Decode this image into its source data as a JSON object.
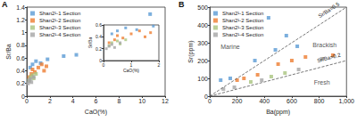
{
  "chart_data": [
    {
      "panel": "A",
      "type": "scatter",
      "marker": "square",
      "x_label": "CaO(%)",
      "y_label": "Sr/Ba",
      "xlim": [
        0,
        12
      ],
      "xticks": [
        0,
        2,
        4,
        6,
        8,
        10,
        12
      ],
      "ylim": [
        0,
        1.4
      ],
      "yticks": [
        0,
        0.2,
        0.4,
        0.6,
        0.8,
        1,
        1.2,
        1.4
      ],
      "legend": "upper left",
      "inset": {
        "x_label": "CaO(%)",
        "y_label": "Sr/Ba",
        "xlim": [
          0,
          2
        ],
        "xticks": [
          0,
          1,
          2
        ],
        "ylim": [
          0,
          0.6
        ],
        "yticks": [
          0,
          0.2,
          0.4,
          0.6
        ]
      },
      "series": [
        {
          "name": "Shan2¹-1 Section",
          "color": "#5b9bd5",
          "x": [
            0.3,
            0.5,
            0.8,
            1.2,
            1.8,
            3.2,
            4.3,
            10.7
          ],
          "values": [
            0.45,
            0.5,
            0.55,
            0.52,
            0.58,
            0.63,
            0.65,
            1.29
          ]
        },
        {
          "name": "Shan2¹-2 Section",
          "color": "#ed7d31",
          "x": [
            0.2,
            0.4,
            0.5,
            0.7,
            1.0,
            1.3,
            1.5,
            1.7
          ],
          "values": [
            0.3,
            0.35,
            0.42,
            0.38,
            0.45,
            0.5,
            0.4,
            0.47
          ]
        },
        {
          "name": "Shan2¹-3 Section",
          "color": "#a9c47f",
          "x": [
            0.2,
            0.3,
            0.5,
            0.6,
            0.8
          ],
          "values": [
            0.25,
            0.3,
            0.33,
            0.28,
            0.35
          ]
        },
        {
          "name": "Shan2¹-4 Section",
          "color": "#a5a5a5",
          "x": [
            0.1,
            0.2,
            0.3,
            0.4,
            0.6
          ],
          "values": [
            0.2,
            0.24,
            0.27,
            0.22,
            0.3
          ]
        }
      ]
    },
    {
      "panel": "B",
      "type": "scatter",
      "marker": "square",
      "x_label": "Ba(ppm)",
      "y_label": "Sr(ppm)",
      "xlim": [
        0,
        1000
      ],
      "xticks": [
        0,
        200,
        400,
        600,
        800,
        1000
      ],
      "ylim": [
        0,
        500
      ],
      "yticks": [
        0,
        100,
        200,
        300,
        400,
        500
      ],
      "legend": "upper left",
      "reference_lines": [
        {
          "label": "Sr/Ba=0.5",
          "slope": 0.5,
          "line_style": "dashed"
        },
        {
          "label": "Sr/Ba=0.2",
          "slope": 0.2,
          "line_style": "dashed"
        }
      ],
      "annotations": [
        {
          "text": "Marine",
          "x": 150,
          "y": 280
        },
        {
          "text": "Brackish",
          "x": 840,
          "y": 290
        },
        {
          "text": "Fresh",
          "x": 820,
          "y": 80
        }
      ],
      "series": [
        {
          "name": "Shan2¹-1 Section",
          "color": "#5b9bd5",
          "x": [
            80,
            150,
            330,
            430,
            480,
            560,
            640
          ],
          "values": [
            90,
            100,
            200,
            440,
            260,
            340,
            280
          ]
        },
        {
          "name": "Shan2¹-2 Section",
          "color": "#ed7d31",
          "x": [
            200,
            250,
            350,
            500,
            600,
            700,
            900
          ],
          "values": [
            90,
            100,
            120,
            180,
            200,
            220,
            230
          ]
        },
        {
          "name": "Shan2¹-3 Section",
          "color": "#a9c47f",
          "x": [
            300,
            450,
            550
          ],
          "values": [
            80,
            110,
            130
          ]
        },
        {
          "name": "Shan2¹-4 Section",
          "color": "#a5a5a5",
          "x": [
            100,
            180,
            380,
            650,
            820
          ],
          "values": [
            40,
            50,
            90,
            150,
            210
          ]
        }
      ]
    }
  ]
}
